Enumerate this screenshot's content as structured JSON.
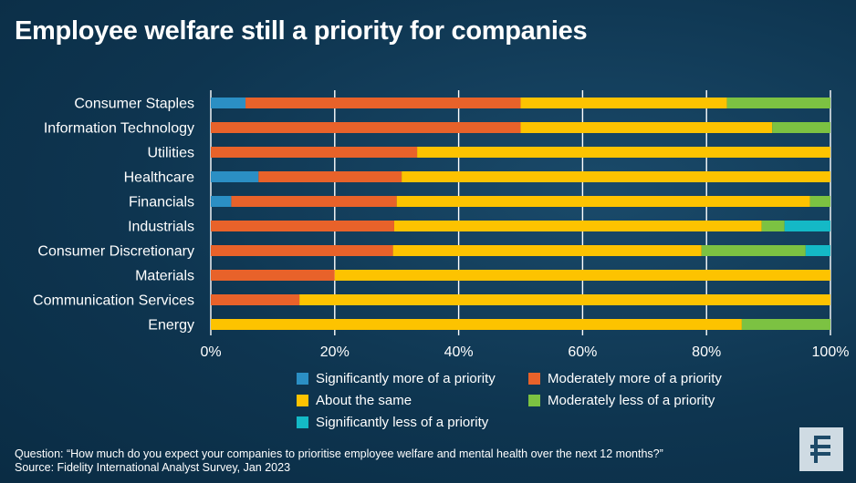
{
  "title": "Employee welfare still a priority for companies",
  "footer": {
    "question": "Question: “How much do you expect your companies to prioritise employee welfare and mental health over the next 12 months?”",
    "source": "Source: Fidelity International Analyst Survey, Jan 2023"
  },
  "logo": {
    "icon": "fidelity-logo-icon",
    "color": "#1d4a68"
  },
  "chart_data": {
    "type": "bar",
    "orientation": "horizontal",
    "stacked": true,
    "title": "Employee welfare still a priority for companies",
    "xlabel": "",
    "ylabel": "",
    "xlim": [
      0,
      100
    ],
    "xticks": [
      "0%",
      "20%",
      "40%",
      "60%",
      "80%",
      "100%"
    ],
    "grid": true,
    "legend_position": "bottom",
    "categories": [
      "Consumer Staples",
      "Information Technology",
      "Utilities",
      "Healthcare",
      "Financials",
      "Industrials",
      "Consumer Discretionary",
      "Materials",
      "Communication Services",
      "Energy"
    ],
    "series": [
      {
        "name": "Significantly more of a priority",
        "color": "#2b8fc4",
        "values": [
          5.6,
          0,
          0,
          7.7,
          3.3,
          0,
          0,
          0,
          0,
          0
        ]
      },
      {
        "name": "Moderately more of a priority",
        "color": "#e8622a",
        "values": [
          44.4,
          50,
          33.3,
          23.1,
          26.7,
          29.6,
          29.4,
          20,
          14.3,
          0
        ]
      },
      {
        "name": "About the same",
        "color": "#fdc300",
        "values": [
          33.3,
          40.6,
          66.7,
          69.2,
          66.7,
          59.3,
          49.8,
          80,
          85.7,
          85.7
        ]
      },
      {
        "name": "Moderately less of a priority",
        "color": "#7cc242",
        "values": [
          16.7,
          9.4,
          0,
          0,
          3.3,
          3.7,
          16.8,
          0,
          0,
          14.3
        ]
      },
      {
        "name": "Significantly less of a priority",
        "color": "#14b9c6",
        "values": [
          0,
          0,
          0,
          0,
          0,
          7.4,
          4,
          0,
          0,
          0
        ]
      }
    ]
  }
}
